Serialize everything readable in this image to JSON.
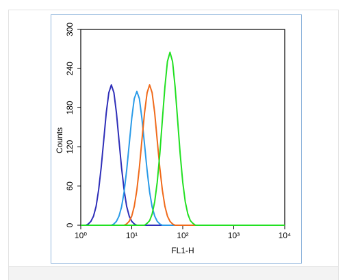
{
  "chart_data": {
    "type": "line",
    "xlabel": "FL1-H",
    "ylabel": "Counts",
    "xscale": "log",
    "xlim": [
      1,
      10000
    ],
    "ylim": [
      0,
      300
    ],
    "xticks": [
      {
        "value": 1,
        "label": "10⁰"
      },
      {
        "value": 10,
        "label": "10¹"
      },
      {
        "value": 100,
        "label": "10²"
      },
      {
        "value": 1000,
        "label": "10³"
      },
      {
        "value": 10000,
        "label": "10⁴"
      }
    ],
    "yticks": [
      0,
      60,
      120,
      180,
      240,
      300
    ],
    "x": [
      1,
      1.12,
      1.26,
      1.41,
      1.58,
      1.78,
      2,
      2.24,
      2.51,
      2.82,
      3.16,
      3.55,
      3.98,
      4.47,
      5.01,
      5.62,
      6.31,
      7.08,
      7.94,
      8.91,
      10,
      11.2,
      12.6,
      14.1,
      15.8,
      17.8,
      20,
      22.4,
      25.1,
      28.2,
      31.6,
      35.5,
      39.8,
      44.7,
      50.1,
      56.2,
      63.1,
      70.8,
      79.4,
      89.1,
      100,
      112,
      126,
      141,
      158,
      178,
      200,
      1000,
      10000
    ],
    "series": [
      {
        "color": "#2e2eb8",
        "values": [
          0,
          0,
          0,
          2,
          6,
          14,
          29,
          54,
          88,
          130,
          172,
          203,
          215,
          203,
          172,
          130,
          88,
          54,
          29,
          14,
          6,
          2,
          0,
          0,
          0,
          0,
          0,
          0,
          0,
          0,
          0,
          0,
          0,
          0,
          0,
          0,
          0,
          0,
          0,
          0,
          0,
          0,
          0,
          0,
          0,
          0,
          0,
          0,
          0
        ]
      },
      {
        "color": "#2a9be8",
        "values": [
          0,
          0,
          0,
          0,
          0,
          0,
          0,
          0,
          0,
          0,
          0,
          0,
          0,
          2,
          6,
          14,
          28,
          51,
          84,
          124,
          164,
          194,
          205,
          194,
          164,
          124,
          84,
          51,
          28,
          14,
          6,
          2,
          0,
          0,
          0,
          0,
          0,
          0,
          0,
          0,
          0,
          0,
          0,
          0,
          0,
          0,
          0,
          0,
          0
        ]
      },
      {
        "color": "#f06a1a",
        "values": [
          0,
          0,
          0,
          0,
          0,
          0,
          0,
          0,
          0,
          0,
          0,
          0,
          0,
          0,
          0,
          0,
          0,
          0,
          2,
          6,
          14,
          29,
          54,
          88,
          130,
          172,
          203,
          215,
          203,
          172,
          130,
          88,
          54,
          29,
          14,
          6,
          2,
          0,
          0,
          0,
          0,
          0,
          0,
          0,
          0,
          0,
          0,
          0,
          0
        ]
      },
      {
        "color": "#22e022",
        "values": [
          0,
          0,
          0,
          0,
          0,
          0,
          0,
          0,
          0,
          0,
          0,
          0,
          0,
          0,
          0,
          0,
          0,
          0,
          0,
          0,
          0,
          0,
          0,
          0,
          0,
          0,
          3,
          7,
          17,
          36,
          66,
          109,
          161,
          212,
          251,
          265,
          251,
          212,
          161,
          109,
          66,
          36,
          17,
          7,
          3,
          0,
          0,
          0,
          0
        ]
      }
    ]
  }
}
